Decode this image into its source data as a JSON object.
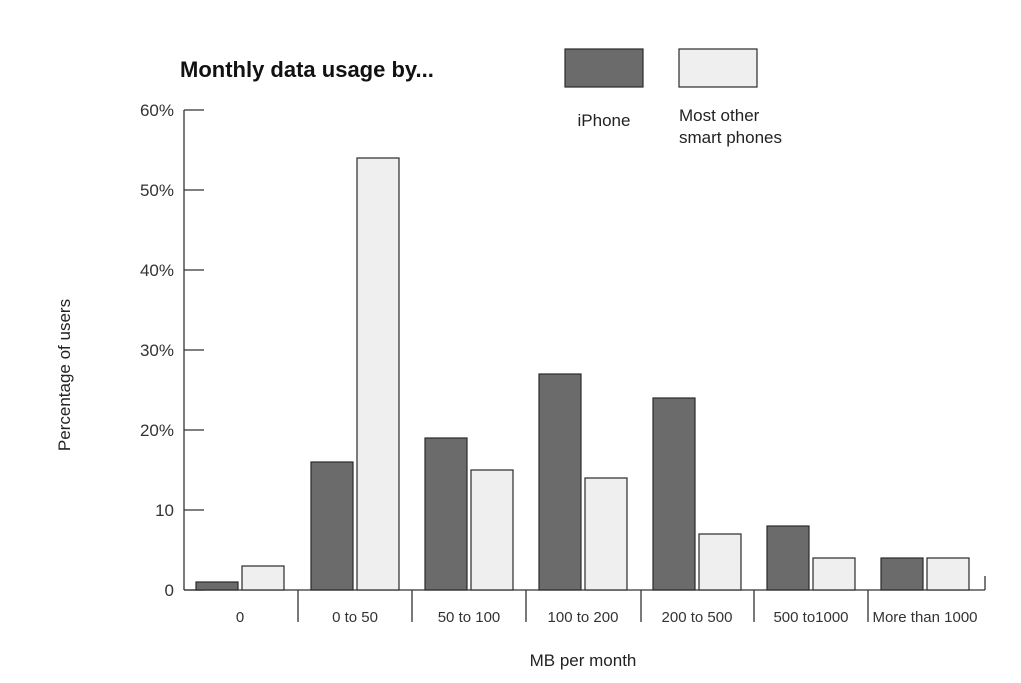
{
  "chart_data": {
    "type": "bar",
    "title": "Monthly data usage by...",
    "xlabel": "MB per month",
    "ylabel": "Percentage of users",
    "categories": [
      "0",
      "0 to 50",
      "50 to 100",
      "100 to 200",
      "200 to 500",
      "500 to1000",
      "More than 1000"
    ],
    "series": [
      {
        "name": "iPhone",
        "color": "#6b6b6b",
        "values": [
          1,
          16,
          19,
          27,
          24,
          8,
          4
        ]
      },
      {
        "name": "Most other smart phones",
        "color": "#efefef",
        "values": [
          3,
          54,
          15,
          14,
          7,
          4,
          4
        ]
      }
    ],
    "ylim": [
      0,
      60
    ],
    "yticks": [
      0,
      10,
      20,
      30,
      40,
      50,
      60
    ],
    "ytick_labels": [
      "0",
      "10",
      "20%",
      "30%",
      "40%",
      "50%",
      "60%"
    ],
    "legend": {
      "placement": "top-right",
      "entries": [
        {
          "lines": [
            "iPhone"
          ],
          "color": "#6b6b6b"
        },
        {
          "lines": [
            "Most other",
            "smart phones"
          ],
          "color": "#efefef"
        }
      ]
    },
    "grid": false
  }
}
